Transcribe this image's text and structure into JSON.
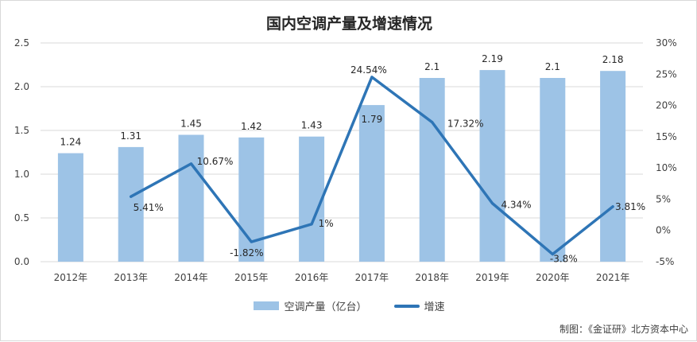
{
  "title": "国内空调产量及增速情况",
  "source": "制图：《金证研》北方资本中心",
  "legend": {
    "bar_label": "空调产量（亿台）",
    "line_label": "增速"
  },
  "colors": {
    "bar": "#9dc3e6",
    "line": "#2e75b6",
    "grid": "#d9d9d9",
    "text": "#404040"
  },
  "chart_data": {
    "type": "bar",
    "categories": [
      "2012年",
      "2013年",
      "2014年",
      "2015年",
      "2016年",
      "2017年",
      "2018年",
      "2019年",
      "2020年",
      "2021年"
    ],
    "series": [
      {
        "name": "空调产量（亿台）",
        "type": "bar",
        "axis": "left",
        "values": [
          1.24,
          1.31,
          1.45,
          1.42,
          1.43,
          1.79,
          2.1,
          2.19,
          2.1,
          2.18
        ],
        "labels": [
          "1.24",
          "1.31",
          "1.45",
          "1.42",
          "1.43",
          "1.79",
          "2.1",
          "2.19",
          "2.1",
          "2.18"
        ]
      },
      {
        "name": "增速",
        "type": "line",
        "axis": "right",
        "values": [
          null,
          5.41,
          10.67,
          -1.82,
          1,
          24.54,
          17.32,
          4.34,
          -3.8,
          3.81
        ],
        "labels": [
          "",
          "5.41%",
          "10.67%",
          "-1.82%",
          "1%",
          "24.54%",
          "17.32%",
          "4.34%",
          "-3.8%",
          "3.81%"
        ]
      }
    ],
    "y_left": {
      "range": [
        0,
        2.5
      ],
      "ticks": [
        0,
        0.5,
        1.0,
        1.5,
        2.0,
        2.5
      ],
      "tick_labels": [
        "0.0",
        "0.5",
        "1.0",
        "1.5",
        "2.0",
        "2.5"
      ]
    },
    "y_right": {
      "range": [
        -5,
        30
      ],
      "ticks": [
        -5,
        0,
        5,
        10,
        15,
        20,
        25,
        30
      ],
      "tick_labels": [
        "-5%",
        "0%",
        "5%",
        "10%",
        "15%",
        "20%",
        "25%",
        "30%"
      ]
    },
    "grid": true,
    "legend_position": "bottom"
  }
}
